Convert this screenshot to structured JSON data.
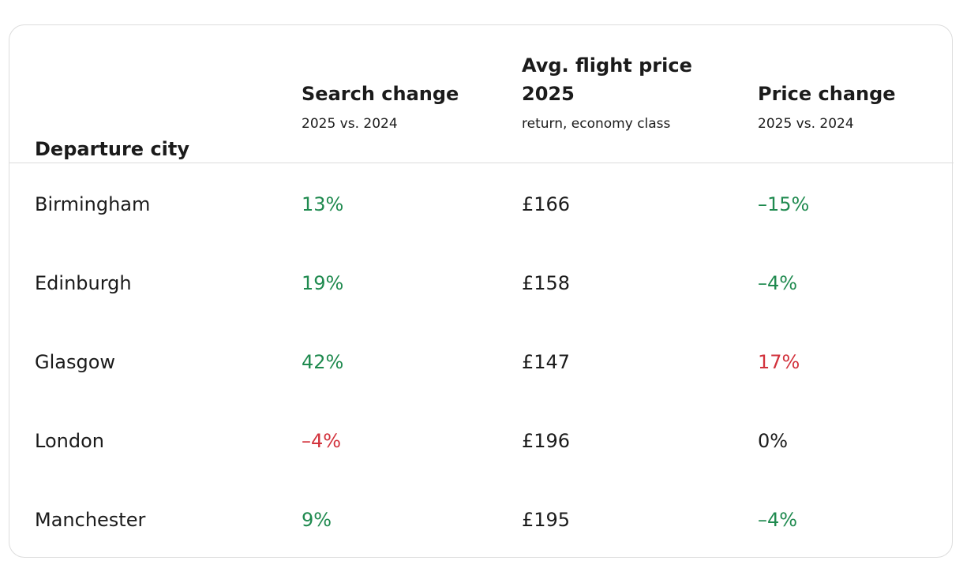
{
  "table": {
    "columns": [
      {
        "title": "Departure city"
      },
      {
        "title": "Search change",
        "subtitle": "2025 vs. 2024"
      },
      {
        "title": "Avg. flight price 2025",
        "subtitle": "return, economy class"
      },
      {
        "title": "Price change",
        "subtitle": "2025 vs. 2024"
      }
    ],
    "rows": [
      [
        "Birmingham",
        "13%",
        "£166",
        "–15%"
      ],
      [
        "Edinburgh",
        "19%",
        "£158",
        "–4%"
      ],
      [
        "Glasgow",
        "42%",
        "£147",
        "17%"
      ],
      [
        "London",
        "–4%",
        "£196",
        "0%"
      ],
      [
        "Manchester",
        "9%",
        "£195",
        "–4%"
      ]
    ]
  }
}
